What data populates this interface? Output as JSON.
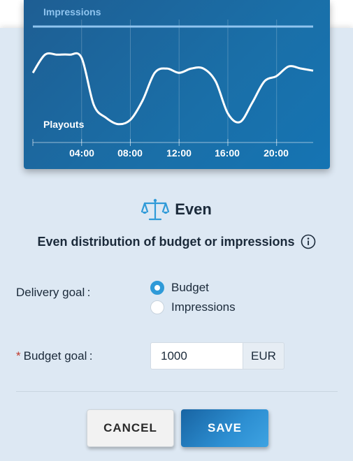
{
  "chart": {
    "top_series_label": "Impressions",
    "bottom_series_label": "Playouts",
    "x_ticks": [
      "04:00",
      "08:00",
      "12:00",
      "16:00",
      "20:00"
    ]
  },
  "chart_data": {
    "type": "line",
    "title": "",
    "xlabel": "",
    "ylabel": "",
    "x_ticks": [
      "04:00",
      "08:00",
      "12:00",
      "16:00",
      "20:00"
    ],
    "x_range_hours": [
      0,
      23
    ],
    "grid": true,
    "series": [
      {
        "name": "Impressions",
        "x": [
          0,
          23
        ],
        "y": [
          1,
          1
        ]
      },
      {
        "name": "Playouts",
        "x": [
          0,
          1,
          2,
          3,
          4,
          5,
          6,
          7,
          8,
          9,
          10,
          11,
          12,
          13,
          14,
          15,
          16,
          17,
          18,
          19,
          20,
          21,
          22,
          23
        ],
        "y": [
          0.58,
          0.75,
          0.75,
          0.75,
          0.72,
          0.28,
          0.16,
          0.1,
          0.14,
          0.32,
          0.58,
          0.62,
          0.58,
          0.62,
          0.62,
          0.5,
          0.2,
          0.12,
          0.3,
          0.5,
          0.55,
          0.64,
          0.62,
          0.6
        ]
      }
    ]
  },
  "strategy": {
    "icon": "scales-icon",
    "title": "Even",
    "description": "Even distribution of budget or impressions",
    "info_icon": "info-icon"
  },
  "delivery_goal": {
    "label": "Delivery goal :",
    "options": [
      "Budget",
      "Impressions"
    ],
    "selected": "Budget"
  },
  "budget_goal": {
    "required_marker": "*",
    "label": "Budget goal :",
    "value": "1000",
    "currency": "EUR"
  },
  "actions": {
    "cancel": "CANCEL",
    "save": "SAVE"
  },
  "colors": {
    "accent": "#2f9ad8",
    "chart_bg": "#1a6fa8",
    "panel_bg": "#dde8f3"
  }
}
